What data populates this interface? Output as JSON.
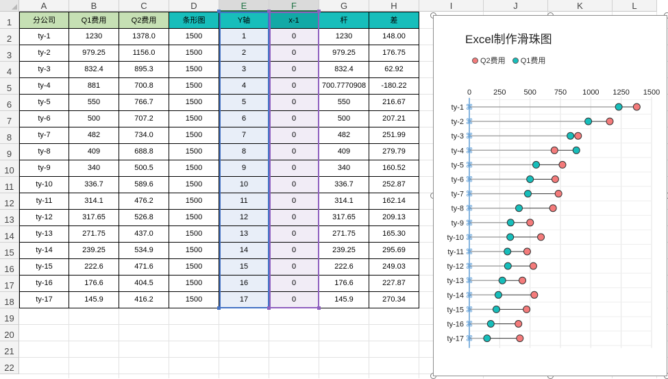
{
  "columns": [
    "A",
    "B",
    "C",
    "D",
    "E",
    "F",
    "G",
    "H",
    "I",
    "J",
    "K",
    "L"
  ],
  "header_row": [
    "分公司",
    "Q1费用",
    "Q2费用",
    "条形图",
    "Y轴",
    "x-1",
    "杆",
    "差"
  ],
  "rows": [
    [
      "ty-1",
      "1230",
      "1378.0",
      "1500",
      "1",
      "0",
      "1230",
      "148.00"
    ],
    [
      "ty-2",
      "979.25",
      "1156.0",
      "1500",
      "2",
      "0",
      "979.25",
      "176.75"
    ],
    [
      "ty-3",
      "832.4",
      "895.3",
      "1500",
      "3",
      "0",
      "832.4",
      "62.92"
    ],
    [
      "ty-4",
      "881",
      "700.8",
      "1500",
      "4",
      "0",
      "700.7770908",
      "-180.22"
    ],
    [
      "ty-5",
      "550",
      "766.7",
      "1500",
      "5",
      "0",
      "550",
      "216.67"
    ],
    [
      "ty-6",
      "500",
      "707.2",
      "1500",
      "6",
      "0",
      "500",
      "207.21"
    ],
    [
      "ty-7",
      "482",
      "734.0",
      "1500",
      "7",
      "0",
      "482",
      "251.99"
    ],
    [
      "ty-8",
      "409",
      "688.8",
      "1500",
      "8",
      "0",
      "409",
      "279.79"
    ],
    [
      "ty-9",
      "340",
      "500.5",
      "1500",
      "9",
      "0",
      "340",
      "160.52"
    ],
    [
      "ty-10",
      "336.7",
      "589.6",
      "1500",
      "10",
      "0",
      "336.7",
      "252.87"
    ],
    [
      "ty-11",
      "314.1",
      "476.2",
      "1500",
      "11",
      "0",
      "314.1",
      "162.14"
    ],
    [
      "ty-12",
      "317.65",
      "526.8",
      "1500",
      "12",
      "0",
      "317.65",
      "209.13"
    ],
    [
      "ty-13",
      "271.75",
      "437.0",
      "1500",
      "13",
      "0",
      "271.75",
      "165.30"
    ],
    [
      "ty-14",
      "239.25",
      "534.9",
      "1500",
      "14",
      "0",
      "239.25",
      "295.69"
    ],
    [
      "ty-15",
      "222.6",
      "471.6",
      "1500",
      "15",
      "0",
      "222.6",
      "249.03"
    ],
    [
      "ty-16",
      "176.6",
      "404.5",
      "1500",
      "16",
      "0",
      "176.6",
      "227.87"
    ],
    [
      "ty-17",
      "145.9",
      "416.2",
      "1500",
      "17",
      "0",
      "145.9",
      "270.34"
    ]
  ],
  "row_numbers": [
    "1",
    "2",
    "3",
    "4",
    "5",
    "6",
    "7",
    "8",
    "9",
    "10",
    "11",
    "12",
    "13",
    "14",
    "15",
    "16",
    "17",
    "18",
    "19",
    "20",
    "21",
    "22"
  ],
  "colors": {
    "q1": "#17bebb",
    "q2": "#f47b7b",
    "header_green": "#c6e0b4",
    "header_teal": "#17bebb",
    "axis_marker": "#5b9bd5"
  },
  "chart_data": {
    "type": "scatter",
    "title": "Excel制作滑珠图",
    "legend": [
      "Q2费用",
      "Q1费用"
    ],
    "legend_position": "top",
    "categories": [
      "ty-1",
      "ty-2",
      "ty-3",
      "ty-4",
      "ty-5",
      "ty-6",
      "ty-7",
      "ty-8",
      "ty-9",
      "ty-10",
      "ty-11",
      "ty-12",
      "ty-13",
      "ty-14",
      "ty-15",
      "ty-16",
      "ty-17"
    ],
    "x_ticks": [
      "0",
      "250",
      "500",
      "750",
      "1000",
      "1250",
      "1500"
    ],
    "xlim": [
      0,
      1500
    ],
    "series": [
      {
        "name": "Q2费用",
        "values": [
          1378.0,
          1156.0,
          895.3,
          700.8,
          766.7,
          707.2,
          734.0,
          688.8,
          500.5,
          589.6,
          476.2,
          526.8,
          437.0,
          534.9,
          471.6,
          404.5,
          416.2
        ]
      },
      {
        "name": "Q1费用",
        "values": [
          1230,
          979.25,
          832.4,
          881,
          550,
          500,
          482,
          409,
          340,
          336.7,
          314.1,
          317.65,
          271.75,
          239.25,
          222.6,
          176.6,
          145.9
        ]
      }
    ],
    "grid": true
  }
}
